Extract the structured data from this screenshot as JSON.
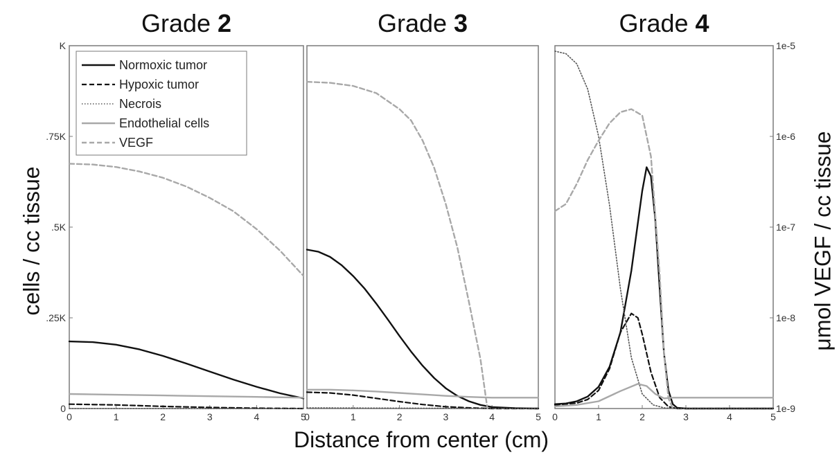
{
  "chart_data": {
    "type": "line",
    "xlabel": "Distance from center (cm)",
    "ylabel": "cells / cc tissue",
    "y2label": "μmol VEGF / cc tissue",
    "xlim": [
      0,
      5
    ],
    "ylim": [
      0,
      1000
    ],
    "y2lim": [
      1e-09,
      1e-05
    ],
    "y2scale": "log",
    "x_ticks": [
      "0",
      "1",
      "2",
      "3",
      "4",
      "5"
    ],
    "y_ticks": [
      {
        "value": 0,
        "label": "0"
      },
      {
        "value": 250,
        "label": ".25K"
      },
      {
        "value": 500,
        "label": ".5K"
      },
      {
        "value": 750,
        "label": ".75K"
      },
      {
        "value": 1000,
        "label": "K"
      }
    ],
    "y2_ticks": [
      {
        "value": 1e-09,
        "label": "1e-9"
      },
      {
        "value": 1e-08,
        "label": "1e-8"
      },
      {
        "value": 1e-07,
        "label": "1e-7"
      },
      {
        "value": 1e-06,
        "label": "1e-6"
      },
      {
        "value": 1e-05,
        "label": "1e-5"
      }
    ],
    "grid": false,
    "legend": {
      "placement": "top-left of first panel",
      "entries": [
        {
          "name": "Normoxic tumor",
          "color": "#111111",
          "style": "solid"
        },
        {
          "name": "Hypoxic tumor",
          "color": "#111111",
          "style": "dashed"
        },
        {
          "name": "Necrois",
          "color": "#555555",
          "style": "dotted"
        },
        {
          "name": "Endothelial cells",
          "color": "#a8a8a8",
          "style": "solid"
        },
        {
          "name": "VEGF",
          "color": "#a8a8a8",
          "style": "dashed"
        }
      ]
    },
    "panels": [
      {
        "title_prefix": "Grade ",
        "title_number": "2",
        "series": [
          {
            "name": "Normoxic tumor",
            "x": [
              0,
              0.5,
              1,
              1.5,
              2,
              2.5,
              3,
              3.5,
              4,
              4.5,
              5
            ],
            "y": [
              185,
              183,
              176,
              163,
              145,
              124,
              102,
              80,
              60,
              42,
              28
            ]
          },
          {
            "name": "Hypoxic tumor",
            "x": [
              0,
              1,
              2,
              3,
              4,
              5
            ],
            "y": [
              12,
              10,
              6,
              3,
              1,
              0
            ]
          },
          {
            "name": "Necrois",
            "x": [
              0,
              5
            ],
            "y": [
              0,
              0
            ]
          },
          {
            "name": "Endothelial cells",
            "x": [
              0,
              1,
              2,
              3,
              4,
              5
            ],
            "y": [
              40,
              38,
              36,
              34,
              32,
              30
            ]
          },
          {
            "name": "VEGF",
            "x": [
              0,
              0.5,
              1,
              1.5,
              2,
              2.5,
              3,
              3.5,
              4,
              4.5,
              5
            ],
            "y": [
              5e-07,
              4.9e-07,
              4.6e-07,
              4.1e-07,
              3.5e-07,
              2.8e-07,
              2.1e-07,
              1.5e-07,
              9.5e-08,
              5.5e-08,
              2.9e-08
            ]
          }
        ]
      },
      {
        "title_prefix": "Grade ",
        "title_number": "3",
        "series": [
          {
            "name": "Normoxic tumor",
            "x": [
              0,
              0.25,
              0.5,
              0.75,
              1,
              1.25,
              1.5,
              1.75,
              2,
              2.25,
              2.5,
              2.75,
              3,
              3.25,
              3.5,
              3.75,
              4,
              4.5,
              5
            ],
            "y": [
              438,
              432,
              418,
              395,
              365,
              330,
              289,
              245,
              200,
              157,
              118,
              84,
              56,
              35,
              20,
              10,
              4,
              1,
              0
            ]
          },
          {
            "name": "Hypoxic tumor",
            "x": [
              0,
              0.5,
              1,
              1.5,
              2,
              2.5,
              3,
              3.5,
              4,
              5
            ],
            "y": [
              45,
              43,
              37,
              28,
              19,
              11,
              5,
              2,
              0,
              0
            ]
          },
          {
            "name": "Necrois",
            "x": [
              0,
              5
            ],
            "y": [
              2,
              0
            ]
          },
          {
            "name": "Endothelial cells",
            "x": [
              0,
              0.5,
              1,
              1.5,
              2,
              2.5,
              3,
              3.5,
              4,
              5
            ],
            "y": [
              52,
              52,
              50,
              47,
              43,
              39,
              35,
              32,
              30,
              30
            ]
          },
          {
            "name": "VEGF",
            "x": [
              0,
              0.5,
              1,
              1.5,
              2,
              2.25,
              2.5,
              2.75,
              3,
              3.25,
              3.5,
              3.75,
              3.9
            ],
            "y": [
              4e-06,
              3.9e-06,
              3.6e-06,
              3e-06,
              2e-06,
              1.5e-06,
              9e-07,
              4.5e-07,
              1.8e-07,
              6e-08,
              1.5e-08,
              3.5e-09,
              1e-09
            ]
          }
        ]
      },
      {
        "title_prefix": "Grade  ",
        "title_number": "4",
        "series": [
          {
            "name": "Normoxic tumor",
            "x": [
              0,
              0.25,
              0.5,
              0.75,
              1,
              1.25,
              1.5,
              1.75,
              2,
              2.1,
              2.2,
              2.3,
              2.4,
              2.5,
              2.6,
              2.7,
              2.8,
              3,
              5
            ],
            "y": [
              12,
              14,
              20,
              33,
              60,
              115,
              210,
              380,
              600,
              665,
              640,
              520,
              330,
              150,
              50,
              12,
              2,
              0,
              0
            ]
          },
          {
            "name": "Hypoxic tumor",
            "x": [
              0,
              0.5,
              0.75,
              1,
              1.25,
              1.5,
              1.75,
              1.9,
              2,
              2.2,
              2.4,
              2.6,
              2.8,
              3,
              5
            ],
            "y": [
              10,
              15,
              25,
              50,
              110,
              210,
              262,
              250,
              205,
              100,
              30,
              5,
              0,
              0,
              0
            ]
          },
          {
            "name": "Necrois",
            "x": [
              0,
              0.25,
              0.5,
              0.75,
              1,
              1.25,
              1.5,
              1.75,
              2,
              2.25,
              2.5,
              2.75,
              3,
              5
            ],
            "y": [
              985,
              978,
              950,
              880,
              750,
              560,
              330,
              140,
              40,
              10,
              2,
              0,
              0,
              0
            ]
          },
          {
            "name": "Endothelial cells",
            "x": [
              0,
              0.5,
              1,
              1.5,
              1.9,
              2.1,
              2.3,
              2.5,
              2.7,
              3,
              5
            ],
            "y": [
              6,
              10,
              20,
              48,
              68,
              62,
              40,
              28,
              30,
              30,
              30
            ]
          },
          {
            "name": "VEGF",
            "x": [
              0,
              0.25,
              0.5,
              0.75,
              1,
              1.25,
              1.5,
              1.75,
              2,
              2.2,
              2.4,
              2.5,
              2.6,
              2.7
            ],
            "y": [
              1.5e-07,
              1.8e-07,
              3e-07,
              5.5e-07,
              9e-07,
              1.4e-06,
              1.85e-06,
              2e-06,
              1.7e-06,
              6e-07,
              3e-08,
              4e-09,
              1.3e-09,
              1e-09
            ]
          }
        ]
      }
    ]
  }
}
